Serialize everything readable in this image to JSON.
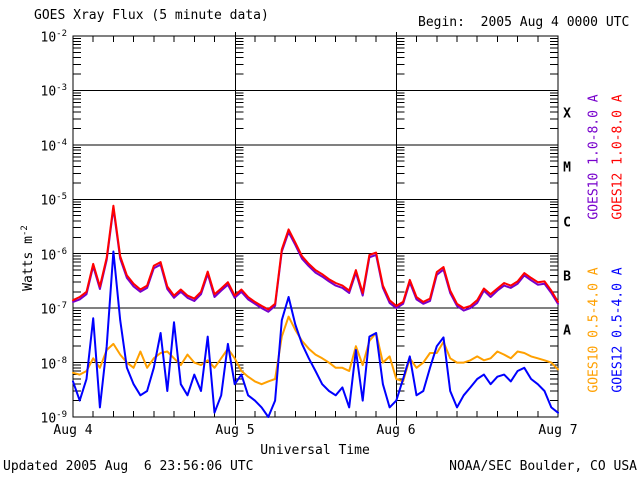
{
  "header": {
    "title": "GOES Xray Flux (5 minute data)",
    "begin_label": "Begin:  2005 Aug 4 0000 UTC"
  },
  "footer": {
    "updated": "Updated 2005 Aug  6 23:56:06 UTC",
    "credit": "NOAA/SEC Boulder, CO USA"
  },
  "axes": {
    "ylabel_text": "Watts m",
    "ylabel_exp": "-2",
    "xlabel": "Universal Time",
    "y_tick_base": "10",
    "y_tick_exponents": [
      "-2",
      "-3",
      "-4",
      "-5",
      "-6",
      "-7",
      "-8",
      "-9"
    ],
    "x_tick_labels": [
      "Aug 4",
      "Aug 5",
      "Aug 6",
      "Aug 7"
    ]
  },
  "flare_classes": [
    "X",
    "M",
    "C",
    "B",
    "A"
  ],
  "colors": {
    "goes10_long": "#7700CC",
    "goes12_long": "#FF0000",
    "goes10_short": "#FFA000",
    "goes12_short": "#0000FF",
    "axis": "#000000",
    "background": "#FFFFFF"
  },
  "chart_data": {
    "type": "line",
    "title": "GOES Xray Flux (5 minute data)",
    "xlabel": "Universal Time",
    "ylabel": "Watts m^-2",
    "yscale": "log",
    "ylim": [
      1e-09,
      0.01
    ],
    "x_unit": "hours since 2005 Aug 4 0000 UTC",
    "x_range_days": [
      "Aug 4",
      "Aug 5",
      "Aug 6",
      "Aug 7"
    ],
    "grid": "horizontal lines at each decade; vertical axes at day boundaries",
    "legend_position": "right margin, rotated",
    "x_hours": [
      0,
      1,
      2,
      3,
      4,
      5,
      6,
      7,
      8,
      9,
      10,
      11,
      12,
      13,
      14,
      15,
      16,
      17,
      18,
      19,
      20,
      21,
      22,
      23,
      24,
      25,
      26,
      27,
      28,
      29,
      30,
      31,
      32,
      33,
      34,
      35,
      36,
      37,
      38,
      39,
      40,
      41,
      42,
      43,
      44,
      45,
      46,
      47,
      48,
      49,
      50,
      51,
      52,
      53,
      54,
      55,
      56,
      57,
      58,
      59,
      60,
      61,
      62,
      63,
      64,
      65,
      66,
      67,
      68,
      69,
      70,
      71,
      72
    ],
    "series": [
      {
        "name": "GOES10 1.0-8.0 A",
        "color": "#7700CC",
        "values": [
          1.3e-07,
          1.45e-07,
          1.8e-07,
          5.9e-07,
          2.25e-07,
          7.7e-07,
          6.9e-06,
          8.1e-07,
          3.6e-07,
          2.5e-07,
          2e-07,
          2.35e-07,
          5.4e-07,
          6.3e-07,
          2.25e-07,
          1.55e-07,
          2e-07,
          1.55e-07,
          1.35e-07,
          1.8e-07,
          4.25e-07,
          1.6e-07,
          2.1e-07,
          2.7e-07,
          1.55e-07,
          2e-07,
          1.45e-07,
          1.2e-07,
          1e-07,
          8.6e-08,
          1.1e-07,
          1.1e-06,
          2.5e-06,
          1.45e-06,
          8.1e-07,
          5.9e-07,
          4.5e-07,
          3.8e-07,
          3.1e-07,
          2.6e-07,
          2.35e-07,
          1.9e-07,
          4.5e-07,
          1.7e-07,
          8.6e-07,
          9.5e-07,
          2.35e-07,
          1.25e-07,
          1e-07,
          1.2e-07,
          3e-07,
          1.45e-07,
          1.2e-07,
          1.35e-07,
          4.1e-07,
          5.1e-07,
          1.9e-07,
          1.1e-07,
          9e-08,
          1e-07,
          1.25e-07,
          2.1e-07,
          1.6e-07,
          2.1e-07,
          2.6e-07,
          2.35e-07,
          2.8e-07,
          4e-07,
          3.25e-07,
          2.7e-07,
          2.8e-07,
          1.9e-07,
          1.2e-07
        ]
      },
      {
        "name": "GOES12 1.0-8.0 A",
        "color": "#FF0000",
        "values": [
          1.4e-07,
          1.6e-07,
          2e-07,
          6.5e-07,
          2.5e-07,
          8.5e-07,
          7.6e-06,
          9e-07,
          4e-07,
          2.8e-07,
          2.2e-07,
          2.6e-07,
          6e-07,
          7e-07,
          2.5e-07,
          1.7e-07,
          2.2e-07,
          1.7e-07,
          1.5e-07,
          2e-07,
          4.7e-07,
          1.8e-07,
          2.3e-07,
          3e-07,
          1.7e-07,
          2.2e-07,
          1.6e-07,
          1.3e-07,
          1.1e-07,
          9.5e-08,
          1.2e-07,
          1.2e-06,
          2.8e-06,
          1.6e-06,
          9e-07,
          6.5e-07,
          5e-07,
          4.2e-07,
          3.4e-07,
          2.9e-07,
          2.6e-07,
          2.1e-07,
          5e-07,
          1.9e-07,
          9.5e-07,
          1.05e-06,
          2.6e-07,
          1.4e-07,
          1.1e-07,
          1.3e-07,
          3.3e-07,
          1.6e-07,
          1.3e-07,
          1.5e-07,
          4.6e-07,
          5.7e-07,
          2.1e-07,
          1.2e-07,
          1e-07,
          1.1e-07,
          1.4e-07,
          2.3e-07,
          1.8e-07,
          2.3e-07,
          2.9e-07,
          2.6e-07,
          3.1e-07,
          4.4e-07,
          3.6e-07,
          3e-07,
          3.1e-07,
          2.1e-07,
          1.3e-07
        ]
      },
      {
        "name": "GOES10 0.5-4.0 A",
        "color": "#FFA000",
        "values": [
          6.5e-09,
          6e-09,
          7e-09,
          1.2e-08,
          8e-09,
          1.7e-08,
          2.2e-08,
          1.4e-08,
          1e-08,
          8e-09,
          1.6e-08,
          8e-09,
          1.2e-08,
          1.5e-08,
          1.6e-08,
          1.2e-08,
          9e-09,
          1.4e-08,
          1e-08,
          9e-09,
          1.1e-08,
          8e-09,
          1.2e-08,
          1.8e-08,
          1.2e-08,
          7e-09,
          5.5e-09,
          4.5e-09,
          4e-09,
          4.5e-09,
          5e-09,
          3e-08,
          7e-08,
          4e-08,
          2.5e-08,
          1.8e-08,
          1.4e-08,
          1.2e-08,
          1e-08,
          8e-09,
          8e-09,
          7e-09,
          2e-08,
          9e-09,
          2.5e-08,
          3.5e-08,
          1e-08,
          1.3e-08,
          5e-09,
          4.5e-09,
          1.2e-08,
          8e-09,
          1e-08,
          1.5e-08,
          1.5e-08,
          2.4e-08,
          1.2e-08,
          1e-08,
          1e-08,
          1.1e-08,
          1.3e-08,
          1.1e-08,
          1.2e-08,
          1.6e-08,
          1.4e-08,
          1.2e-08,
          1.6e-08,
          1.5e-08,
          1.3e-08,
          1.2e-08,
          1.1e-08,
          1e-08,
          7.5e-09
        ]
      },
      {
        "name": "GOES12 0.5-4.0 A",
        "color": "#0000FF",
        "values": [
          4.5e-09,
          2e-09,
          5e-09,
          6.5e-08,
          1.5e-09,
          2e-08,
          1.1e-06,
          6e-08,
          8e-09,
          4e-09,
          2.5e-09,
          3e-09,
          8e-09,
          3.5e-08,
          3e-09,
          5.5e-08,
          4e-09,
          2.5e-09,
          6e-09,
          3e-09,
          3e-08,
          1.2e-09,
          2.5e-09,
          2.2e-08,
          4e-09,
          6e-09,
          2.5e-09,
          2e-09,
          1.5e-09,
          1e-09,
          2e-09,
          6e-08,
          1.6e-07,
          5e-08,
          2.2e-08,
          1.2e-08,
          7e-09,
          4e-09,
          3e-09,
          2.5e-09,
          3.5e-09,
          1.5e-09,
          1.7e-08,
          2e-09,
          3e-08,
          3.5e-08,
          4e-09,
          1.5e-09,
          2e-09,
          5e-09,
          1.3e-08,
          2.5e-09,
          3e-09,
          8e-09,
          2e-08,
          2.9e-08,
          3e-09,
          1.5e-09,
          2.5e-09,
          3.5e-09,
          5e-09,
          6e-09,
          4e-09,
          5.5e-09,
          6e-09,
          4.5e-09,
          7e-09,
          8e-09,
          5e-09,
          4e-09,
          3e-09,
          1.5e-09,
          1.2e-09
        ]
      }
    ]
  }
}
